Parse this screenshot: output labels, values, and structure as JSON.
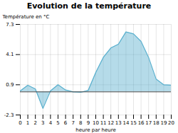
{
  "chart_data": {
    "type": "area",
    "title": "Evolution de la température",
    "xlabel": "heure par heure",
    "ylabel": "Température en °C",
    "x": [
      0,
      1,
      2,
      3,
      4,
      5,
      6,
      7,
      8,
      9,
      10,
      11,
      12,
      13,
      14,
      15,
      16,
      17,
      18,
      19,
      20
    ],
    "values": [
      0.25,
      0.85,
      0.45,
      -1.6,
      0.25,
      0.9,
      0.35,
      0.15,
      0.1,
      0.3,
      2.2,
      3.8,
      4.8,
      5.2,
      6.5,
      6.3,
      5.5,
      3.8,
      1.5,
      0.9,
      0.85
    ],
    "baseline": 0.15,
    "color": "#5ab0ce",
    "xlim": [
      0,
      20
    ],
    "xticks": [
      0,
      1,
      2,
      3,
      4,
      5,
      6,
      7,
      8,
      9,
      10,
      11,
      12,
      13,
      14,
      15,
      16,
      17,
      18,
      19,
      20
    ],
    "ylim": [
      -2.3,
      7.3
    ],
    "yticks": [
      -2.3,
      0.9,
      4.1,
      7.3
    ],
    "grid": true
  }
}
